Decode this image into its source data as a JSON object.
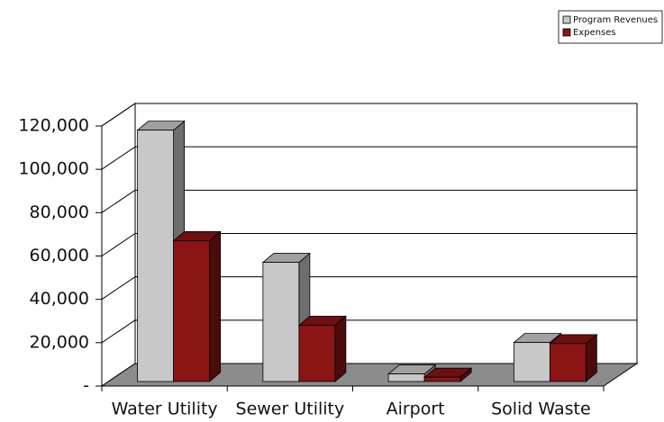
{
  "chart_data": {
    "type": "bar3d",
    "categories": [
      "Water Utility",
      "Sewer Utility",
      "Airport",
      "Solid Waste"
    ],
    "series": [
      {
        "name": "Program Revenues",
        "color": "#c8c8c8",
        "values": [
          116000,
          55000,
          3500,
          18000
        ]
      },
      {
        "name": "Expenses",
        "color": "#8b1414",
        "values": [
          65000,
          26000,
          2000,
          17500
        ]
      }
    ],
    "ylim": [
      0,
      120000
    ],
    "yticks": [
      {
        "value": 0,
        "label": "-"
      },
      {
        "value": 20000,
        "label": "20,000"
      },
      {
        "value": 40000,
        "label": "40,000"
      },
      {
        "value": 60000,
        "label": "60,000"
      },
      {
        "value": 80000,
        "label": "80,000"
      },
      {
        "value": 100000,
        "label": "100,000"
      },
      {
        "value": 120000,
        "label": "120,000"
      }
    ],
    "grid": true,
    "legend": "top-right"
  }
}
